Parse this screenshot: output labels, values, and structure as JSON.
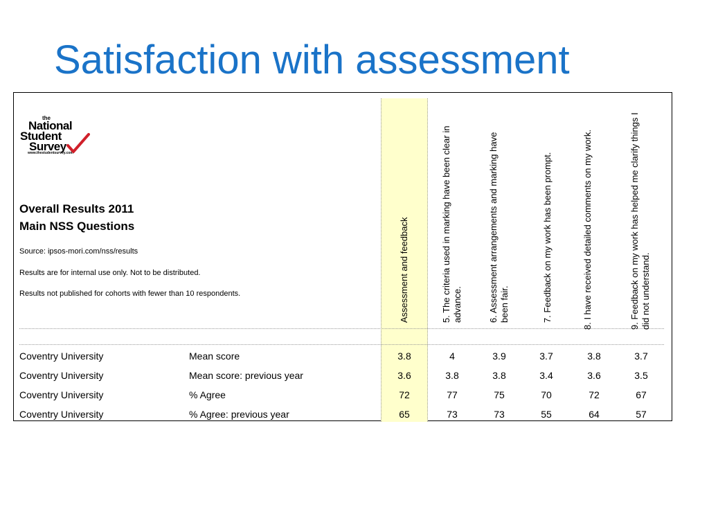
{
  "slide": {
    "title": "Satisfaction with assessment"
  },
  "logo": {
    "line1": "the",
    "line2": "National",
    "line3": "Student",
    "line4": "Survey",
    "url": "www.thestudentsurvey.com"
  },
  "panel": {
    "heading_line1": "Overall Results 2011",
    "heading_line2": "Main NSS Questions",
    "notes": [
      "Source: ipsos-mori.com/nss/results",
      "Results are for internal use only. Not to be distributed.",
      "Results not published for cohorts with fewer than 10 respondents."
    ]
  },
  "columns": [
    "Assessment and feedback",
    "5. The criteria used in marking have been clear in advance.",
    "6. Assessment arrangements and marking have been fair.",
    "7. Feedback on my work has been prompt.",
    "8. I have received detailed comments on my work.",
    "9. Feedback on my work has helped me clarify things I did not understand."
  ],
  "rows": [
    {
      "institution": "Coventry University",
      "measure": "Mean score",
      "values": [
        "3.8",
        "4",
        "3.9",
        "3.7",
        "3.8",
        "3.7"
      ]
    },
    {
      "institution": "Coventry University",
      "measure": "Mean score: previous year",
      "values": [
        "3.6",
        "3.8",
        "3.8",
        "3.4",
        "3.6",
        "3.5"
      ]
    },
    {
      "institution": "Coventry University",
      "measure": "% Agree",
      "values": [
        "72",
        "77",
        "75",
        "70",
        "72",
        "67"
      ]
    },
    {
      "institution": "Coventry University",
      "measure": "% Agree: previous year",
      "values": [
        "65",
        "73",
        "73",
        "55",
        "64",
        "57"
      ]
    }
  ],
  "colors": {
    "title": "#1a73c8",
    "highlight": "#ffffcc",
    "check": "#d0202a"
  }
}
